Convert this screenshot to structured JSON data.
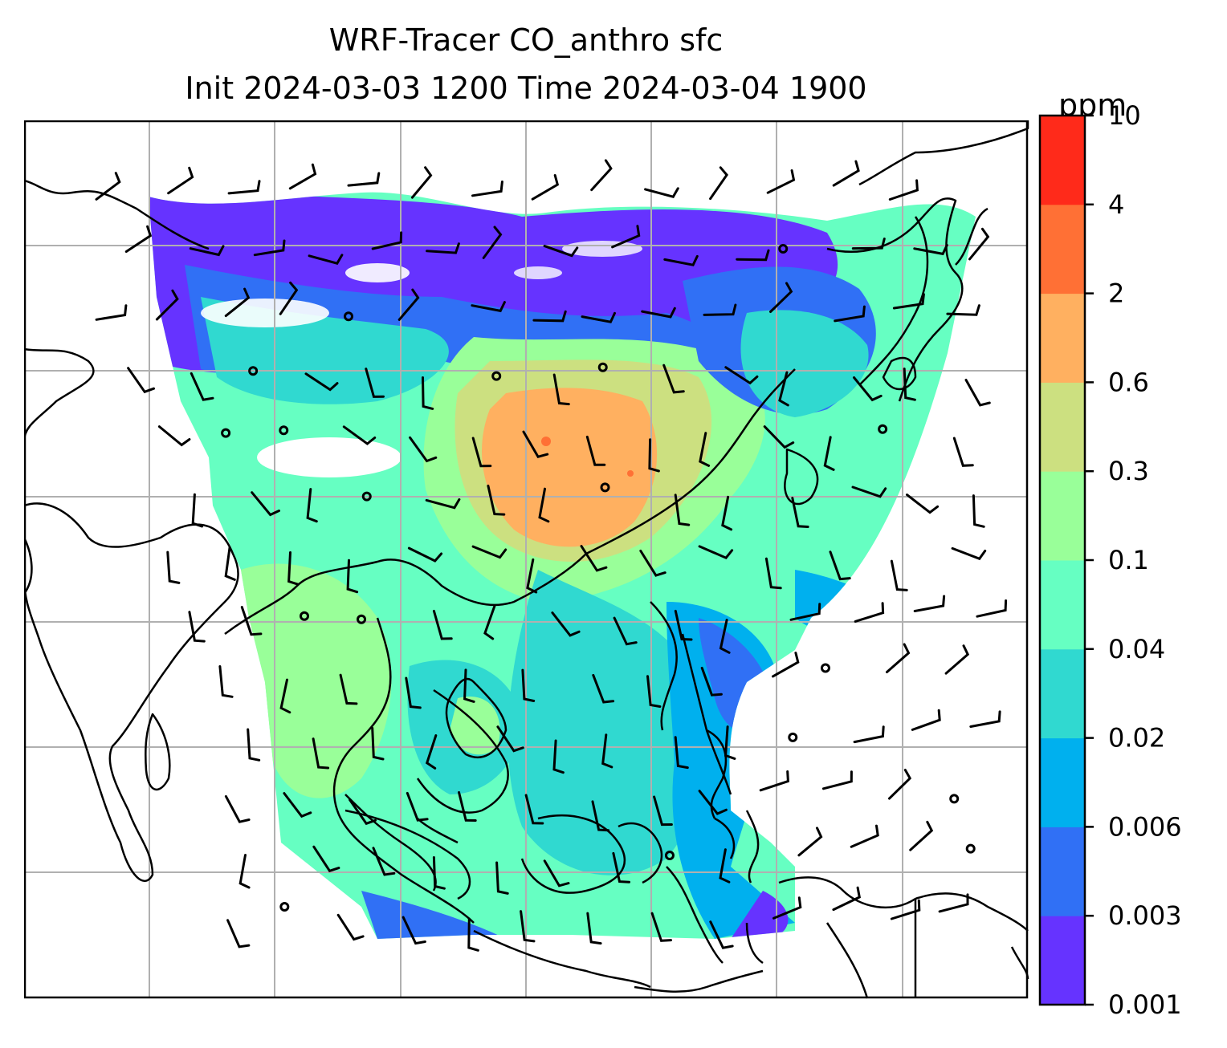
{
  "title": {
    "line1": "WRF-Tracer CO_anthro sfc",
    "line2": "Init 2024-03-03 1200 Time 2024-03-04 1900"
  },
  "colorbar": {
    "unit_label": "ppm",
    "levels": [
      "0.001",
      "0.003",
      "0.006",
      "0.02",
      "0.04",
      "0.1",
      "0.3",
      "0.6",
      "2",
      "4",
      "10"
    ],
    "colors": [
      "#6633ff",
      "#3070f5",
      "#00b0ee",
      "#30d9d0",
      "#66ffc2",
      "#99ff99",
      "#cce080",
      "#ffb060",
      "#ff7035",
      "#ff2a1a"
    ]
  },
  "map": {
    "colors": {
      "gridline": "#b0b0b0",
      "coastline": "#000000",
      "barb": "#000000",
      "no_data": "#ffffff"
    },
    "regions": [
      {
        "id": "north-band",
        "color": "#6633ff",
        "desc": "low concentration north"
      },
      {
        "id": "east-plain",
        "color": "#cce080"
      },
      {
        "id": "central-china",
        "color": "#ffb060"
      },
      {
        "id": "indochina",
        "color": "#99ff99"
      },
      {
        "id": "southeast-sea",
        "color": "#30d9d0"
      },
      {
        "id": "pacific",
        "color": "#00b0ee"
      }
    ]
  }
}
